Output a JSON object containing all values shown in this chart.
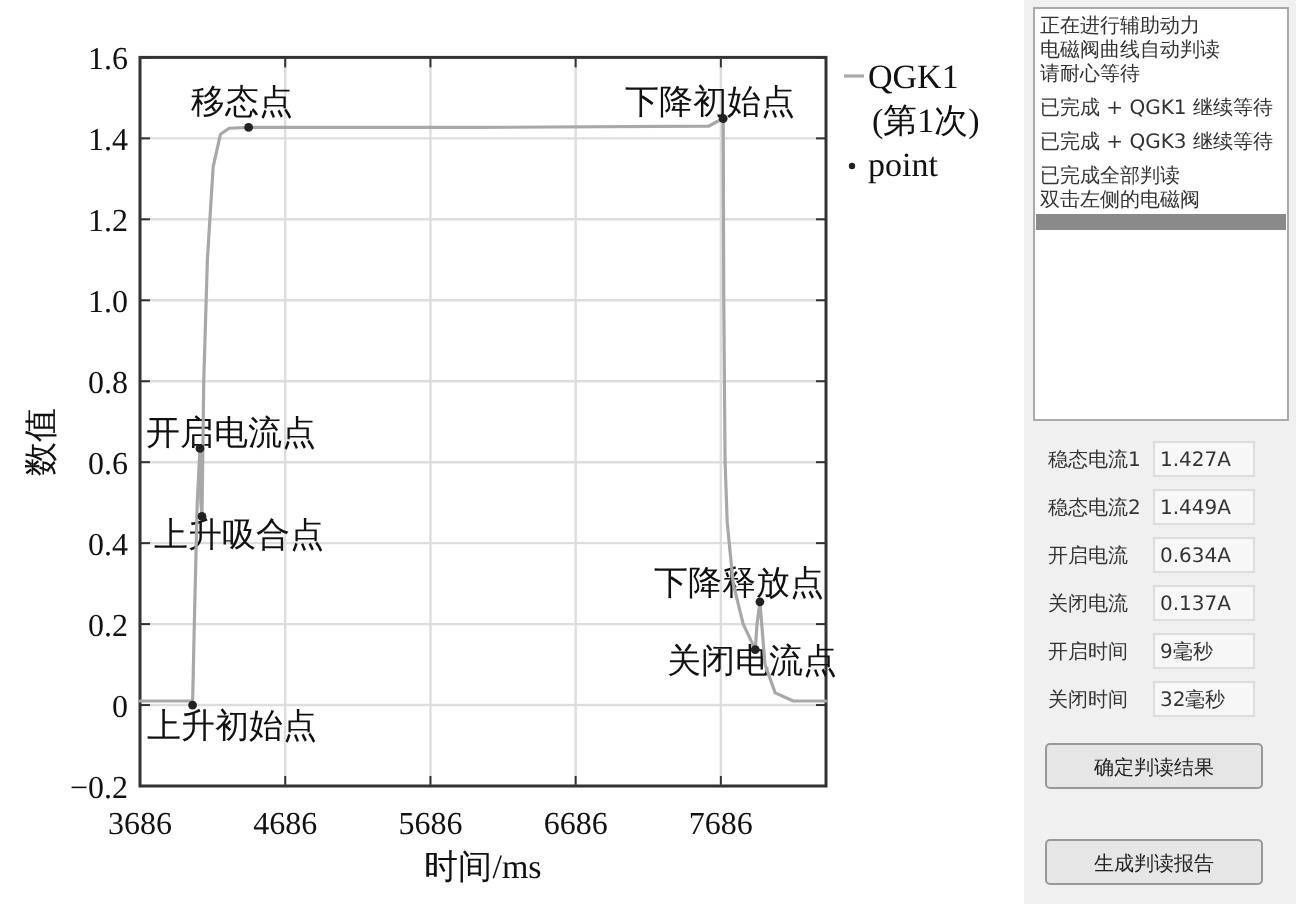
{
  "chart_data": [
    {
      "type": "line",
      "xlabel": "时间/ms",
      "ylabel": "数值",
      "xlim": [
        3686,
        8410
      ],
      "ylim": [
        -0.2,
        1.6
      ],
      "xticks": [
        3686,
        4686,
        5686,
        6686,
        7686
      ],
      "yticks": [
        {
          "value": -0.2,
          "label": "−0.2"
        },
        0,
        {
          "value": 0.2,
          "label": "0.2"
        },
        {
          "value": 0.4,
          "label": "0.4"
        },
        {
          "value": 0.6,
          "label": "0.6"
        },
        {
          "value": 0.8,
          "label": "0.8"
        },
        {
          "value": 1.0,
          "label": "1.0"
        },
        {
          "value": 1.2,
          "label": "1.2"
        },
        {
          "value": 1.4,
          "label": "1.4"
        },
        {
          "value": 1.6,
          "label": "1.6"
        }
      ],
      "grid": true,
      "legend": "right",
      "marker": "none",
      "series": [
        {
          "name": "QGK1 (第1次)",
          "type": "line",
          "color": "#a8a8a8",
          "x": [
            3686,
            4044,
            4048,
            4060,
            4080,
            4099,
            4105,
            4113,
            4125,
            4150,
            4190,
            4240,
            4300,
            4434,
            6000,
            7600,
            7702,
            7706,
            7715,
            7730,
            7771,
            7840,
            7923,
            7935,
            7955,
            7990,
            8060,
            8185,
            8410
          ],
          "values": [
            0.01,
            0.01,
            0,
            0.2,
            0.5,
            0.634,
            0.5,
            0.466,
            0.8,
            1.1,
            1.33,
            1.41,
            1.425,
            1.427,
            1.427,
            1.43,
            1.449,
            1.0,
            0.6,
            0.45,
            0.3,
            0.2,
            0.137,
            0.2,
            0.255,
            0.1,
            0.03,
            0.01,
            0.01
          ]
        },
        {
          "name": "point",
          "type": "scatter",
          "marker": "circle",
          "color": "#222222",
          "x": [
            4048,
            4099,
            4113,
            4434,
            7702,
            7923,
            7955
          ],
          "values": [
            0,
            0.634,
            0.466,
            1.427,
            1.449,
            0.137,
            0.255
          ]
        }
      ],
      "annotations": [
        {
          "text": "上升初始点",
          "x": 4048,
          "y": 0
        },
        {
          "text": "开启电流点",
          "x": 4099,
          "y": 0.634
        },
        {
          "text": "上升吸合点",
          "x": 4113,
          "y": 0.466
        },
        {
          "text": "移态点",
          "x": 4434,
          "y": 1.427
        },
        {
          "text": "下降初始点",
          "x": 7702,
          "y": 1.449
        },
        {
          "text": "关闭电流点",
          "x": 7923,
          "y": 0.137
        },
        {
          "text": "下降释放点",
          "x": 7955,
          "y": 0.255
        }
      ]
    },
    {
      "type": "other",
      "annotations": [
        "正在进行辅助动力",
        "电磁阀曲线自动判读",
        "请耐心等待",
        "已完成 + QGK1 继续等待",
        "已完成 + QGK3 继续等待",
        "已完成全部判读",
        "双击左侧的电磁阀",
        "稳态电流1",
        "1.427A",
        "稳态电流2",
        "1.449A",
        "开启电流",
        "0.634A",
        "关闭电流",
        "0.137A",
        "开启时间",
        "9毫秒",
        "关闭时间",
        "32毫秒",
        "确定判读结果",
        "生成判读报告"
      ]
    }
  ]
}
